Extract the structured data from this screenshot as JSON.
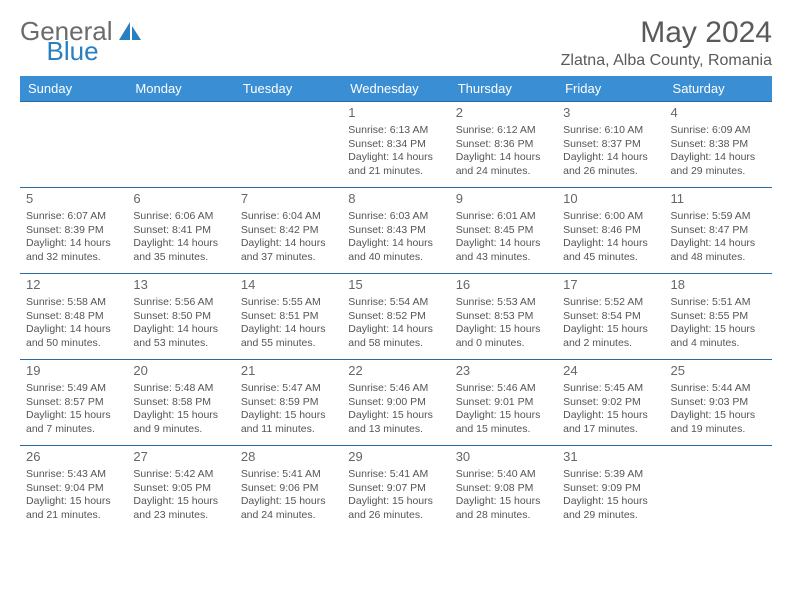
{
  "logo": {
    "part1": "General",
    "part2": "Blue"
  },
  "title": "May 2024",
  "location": "Zlatna, Alba County, Romania",
  "colors": {
    "header_bg": "#3a8fd4",
    "header_text": "#ffffff",
    "border": "#2a6aa0",
    "logo_gray": "#6b6b6b",
    "logo_blue": "#2a7fbf",
    "logo_shape": "#2a7fbf",
    "text": "#555555",
    "daynum": "#666666",
    "title_color": "#5a5a5a"
  },
  "weekdays": [
    "Sunday",
    "Monday",
    "Tuesday",
    "Wednesday",
    "Thursday",
    "Friday",
    "Saturday"
  ],
  "weeks": [
    [
      null,
      null,
      null,
      {
        "n": "1",
        "sunrise": "6:13 AM",
        "sunset": "8:34 PM",
        "daylight": "14 hours and 21 minutes."
      },
      {
        "n": "2",
        "sunrise": "6:12 AM",
        "sunset": "8:36 PM",
        "daylight": "14 hours and 24 minutes."
      },
      {
        "n": "3",
        "sunrise": "6:10 AM",
        "sunset": "8:37 PM",
        "daylight": "14 hours and 26 minutes."
      },
      {
        "n": "4",
        "sunrise": "6:09 AM",
        "sunset": "8:38 PM",
        "daylight": "14 hours and 29 minutes."
      }
    ],
    [
      {
        "n": "5",
        "sunrise": "6:07 AM",
        "sunset": "8:39 PM",
        "daylight": "14 hours and 32 minutes."
      },
      {
        "n": "6",
        "sunrise": "6:06 AM",
        "sunset": "8:41 PM",
        "daylight": "14 hours and 35 minutes."
      },
      {
        "n": "7",
        "sunrise": "6:04 AM",
        "sunset": "8:42 PM",
        "daylight": "14 hours and 37 minutes."
      },
      {
        "n": "8",
        "sunrise": "6:03 AM",
        "sunset": "8:43 PM",
        "daylight": "14 hours and 40 minutes."
      },
      {
        "n": "9",
        "sunrise": "6:01 AM",
        "sunset": "8:45 PM",
        "daylight": "14 hours and 43 minutes."
      },
      {
        "n": "10",
        "sunrise": "6:00 AM",
        "sunset": "8:46 PM",
        "daylight": "14 hours and 45 minutes."
      },
      {
        "n": "11",
        "sunrise": "5:59 AM",
        "sunset": "8:47 PM",
        "daylight": "14 hours and 48 minutes."
      }
    ],
    [
      {
        "n": "12",
        "sunrise": "5:58 AM",
        "sunset": "8:48 PM",
        "daylight": "14 hours and 50 minutes."
      },
      {
        "n": "13",
        "sunrise": "5:56 AM",
        "sunset": "8:50 PM",
        "daylight": "14 hours and 53 minutes."
      },
      {
        "n": "14",
        "sunrise": "5:55 AM",
        "sunset": "8:51 PM",
        "daylight": "14 hours and 55 minutes."
      },
      {
        "n": "15",
        "sunrise": "5:54 AM",
        "sunset": "8:52 PM",
        "daylight": "14 hours and 58 minutes."
      },
      {
        "n": "16",
        "sunrise": "5:53 AM",
        "sunset": "8:53 PM",
        "daylight": "15 hours and 0 minutes."
      },
      {
        "n": "17",
        "sunrise": "5:52 AM",
        "sunset": "8:54 PM",
        "daylight": "15 hours and 2 minutes."
      },
      {
        "n": "18",
        "sunrise": "5:51 AM",
        "sunset": "8:55 PM",
        "daylight": "15 hours and 4 minutes."
      }
    ],
    [
      {
        "n": "19",
        "sunrise": "5:49 AM",
        "sunset": "8:57 PM",
        "daylight": "15 hours and 7 minutes."
      },
      {
        "n": "20",
        "sunrise": "5:48 AM",
        "sunset": "8:58 PM",
        "daylight": "15 hours and 9 minutes."
      },
      {
        "n": "21",
        "sunrise": "5:47 AM",
        "sunset": "8:59 PM",
        "daylight": "15 hours and 11 minutes."
      },
      {
        "n": "22",
        "sunrise": "5:46 AM",
        "sunset": "9:00 PM",
        "daylight": "15 hours and 13 minutes."
      },
      {
        "n": "23",
        "sunrise": "5:46 AM",
        "sunset": "9:01 PM",
        "daylight": "15 hours and 15 minutes."
      },
      {
        "n": "24",
        "sunrise": "5:45 AM",
        "sunset": "9:02 PM",
        "daylight": "15 hours and 17 minutes."
      },
      {
        "n": "25",
        "sunrise": "5:44 AM",
        "sunset": "9:03 PM",
        "daylight": "15 hours and 19 minutes."
      }
    ],
    [
      {
        "n": "26",
        "sunrise": "5:43 AM",
        "sunset": "9:04 PM",
        "daylight": "15 hours and 21 minutes."
      },
      {
        "n": "27",
        "sunrise": "5:42 AM",
        "sunset": "9:05 PM",
        "daylight": "15 hours and 23 minutes."
      },
      {
        "n": "28",
        "sunrise": "5:41 AM",
        "sunset": "9:06 PM",
        "daylight": "15 hours and 24 minutes."
      },
      {
        "n": "29",
        "sunrise": "5:41 AM",
        "sunset": "9:07 PM",
        "daylight": "15 hours and 26 minutes."
      },
      {
        "n": "30",
        "sunrise": "5:40 AM",
        "sunset": "9:08 PM",
        "daylight": "15 hours and 28 minutes."
      },
      {
        "n": "31",
        "sunrise": "5:39 AM",
        "sunset": "9:09 PM",
        "daylight": "15 hours and 29 minutes."
      },
      null
    ]
  ],
  "labels": {
    "sunrise": "Sunrise: ",
    "sunset": "Sunset: ",
    "daylight": "Daylight: "
  }
}
